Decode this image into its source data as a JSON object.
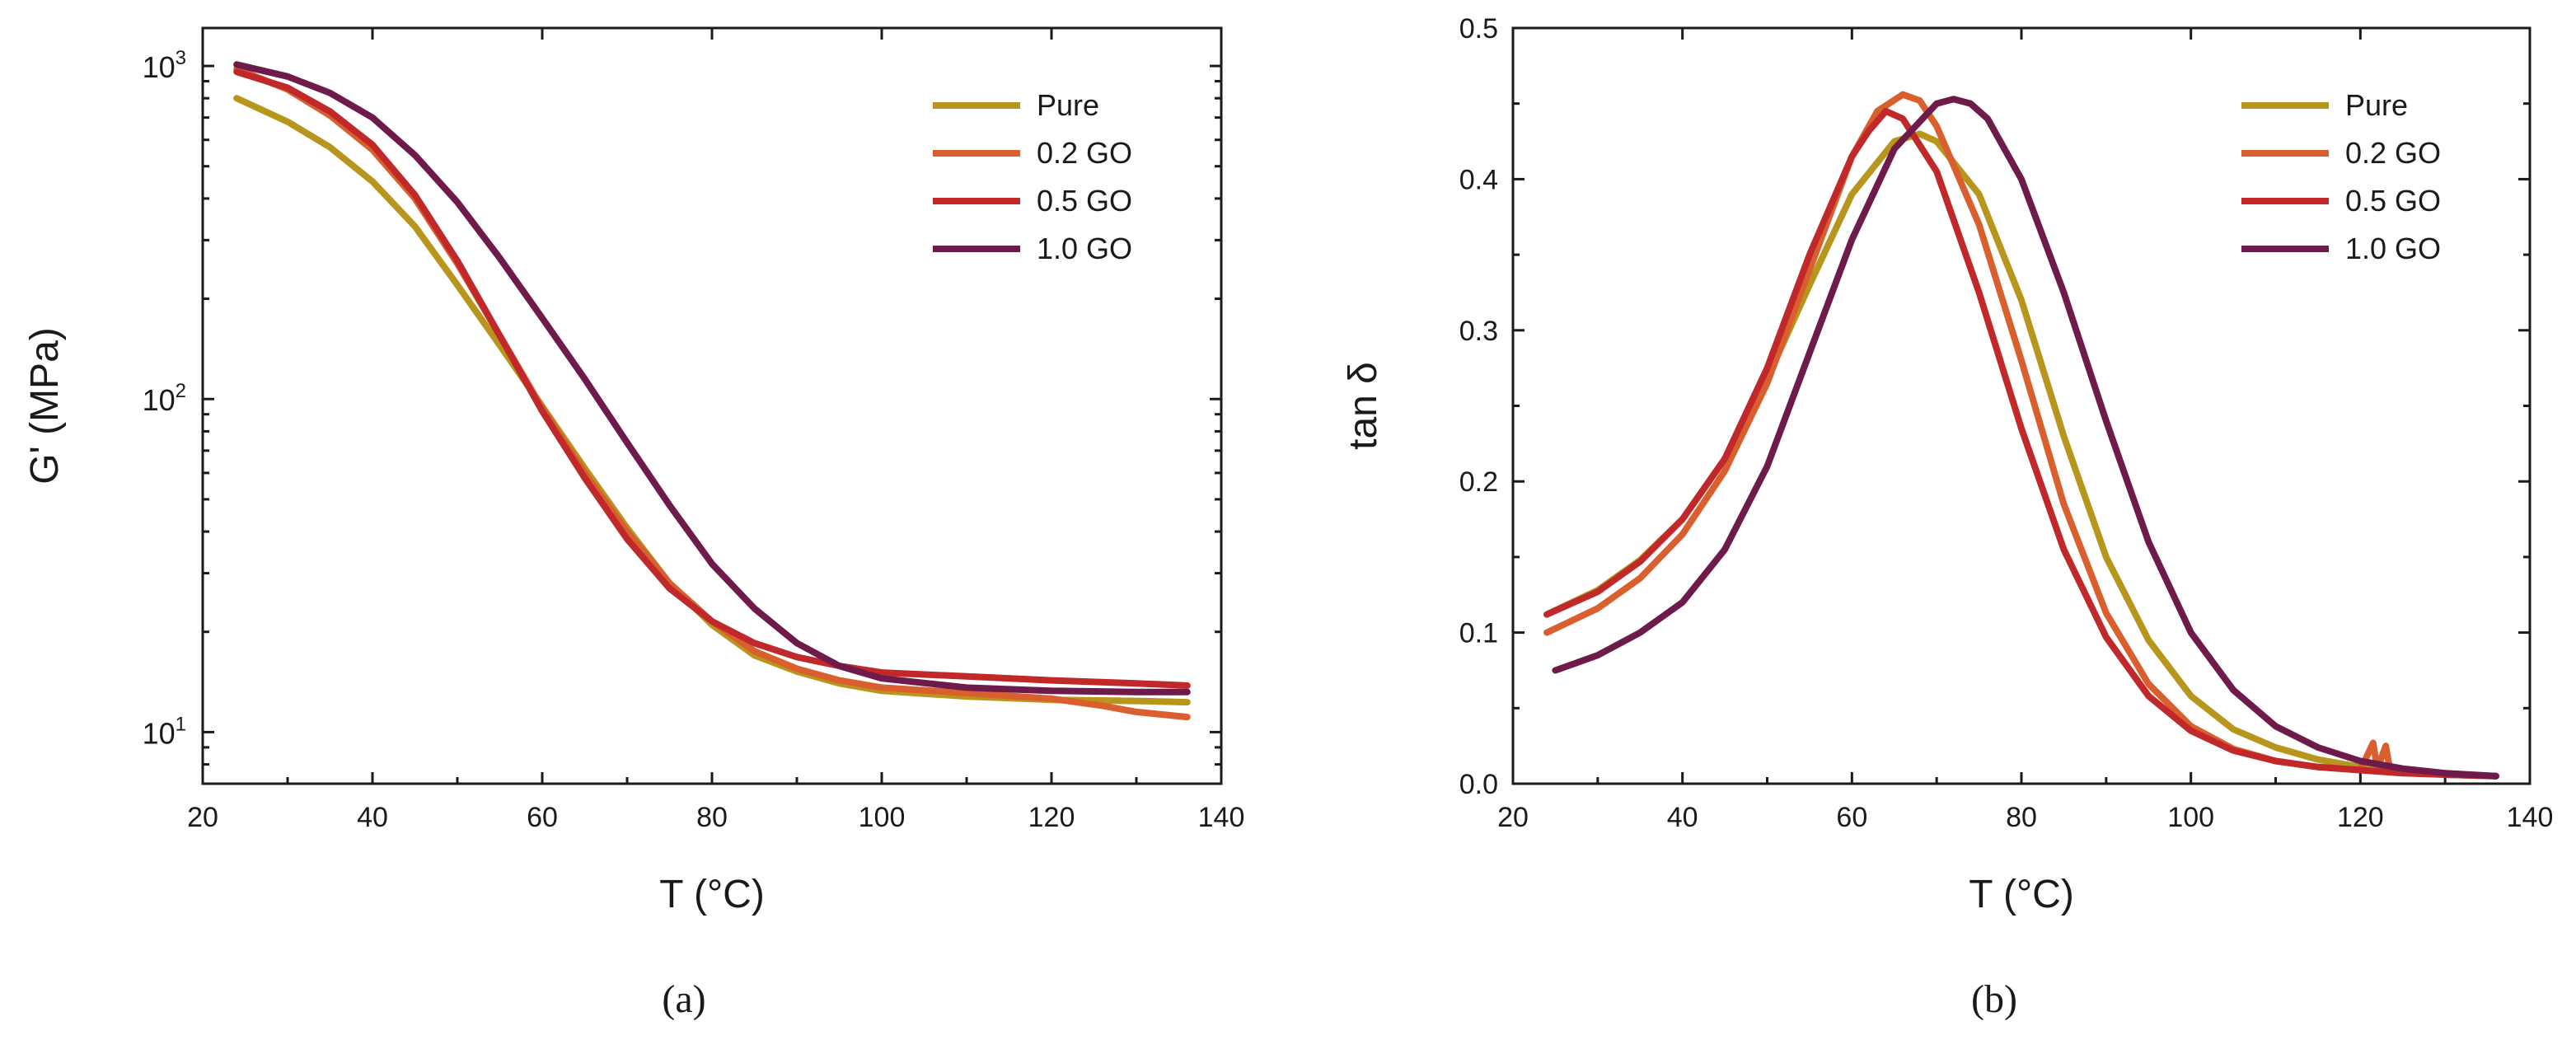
{
  "colors": {
    "Pure": "#b8961e",
    "0.2 GO": "#d9602e",
    "0.5 GO": "#c0282a",
    "1.0 GO": "#6e1a4a"
  },
  "chart_data": [
    {
      "type": "line",
      "panel": "a",
      "caption": "(a)",
      "xlabel": "T (°C)",
      "ylabel": "G' (MPa)",
      "yscale": "log",
      "xlim": [
        20,
        140
      ],
      "ylim": [
        7,
        1300
      ],
      "xticks": [
        20,
        40,
        60,
        80,
        100,
        120,
        140
      ],
      "xtick_labels": [
        "20",
        "40",
        "60",
        "80",
        "100",
        "120",
        "140"
      ],
      "yticks": [
        10,
        100,
        1000
      ],
      "ytick_labels": [
        {
          "base": "10",
          "exp": "1"
        },
        {
          "base": "10",
          "exp": "2"
        },
        {
          "base": "10",
          "exp": "3"
        }
      ],
      "legend": "top-right",
      "series": [
        {
          "name": "Pure",
          "x": [
            24,
            30,
            35,
            40,
            45,
            50,
            55,
            60,
            65,
            70,
            75,
            80,
            85,
            90,
            95,
            100,
            110,
            120,
            130,
            136
          ],
          "y": [
            800,
            680,
            570,
            450,
            330,
            220,
            145,
            95,
            62,
            41,
            28,
            21,
            17,
            15.2,
            14,
            13.3,
            12.8,
            12.5,
            12.4,
            12.3
          ]
        },
        {
          "name": "0.2 GO",
          "x": [
            24,
            30,
            35,
            40,
            45,
            50,
            55,
            60,
            65,
            70,
            75,
            80,
            85,
            90,
            95,
            100,
            110,
            120,
            126,
            130,
            136
          ],
          "y": [
            980,
            850,
            710,
            560,
            400,
            255,
            155,
            94,
            60,
            40,
            28,
            21.5,
            17.5,
            15.5,
            14.3,
            13.6,
            13.1,
            12.6,
            12,
            11.5,
            11.1
          ]
        },
        {
          "name": "0.5 GO",
          "x": [
            24,
            30,
            35,
            40,
            45,
            50,
            55,
            60,
            65,
            70,
            75,
            80,
            85,
            90,
            95,
            100,
            110,
            120,
            130,
            136
          ],
          "y": [
            960,
            860,
            730,
            580,
            410,
            260,
            155,
            92,
            58,
            38,
            27,
            21.5,
            18.5,
            16.8,
            15.8,
            15.1,
            14.7,
            14.3,
            14,
            13.8
          ]
        },
        {
          "name": "1.0 GO",
          "x": [
            24,
            30,
            35,
            40,
            45,
            50,
            55,
            60,
            65,
            70,
            75,
            80,
            85,
            90,
            95,
            100,
            110,
            120,
            130,
            136
          ],
          "y": [
            1010,
            930,
            830,
            700,
            540,
            390,
            265,
            175,
            115,
            74,
            48,
            32,
            23.5,
            18.5,
            15.8,
            14.5,
            13.6,
            13.3,
            13.2,
            13.2
          ]
        }
      ]
    },
    {
      "type": "line",
      "panel": "b",
      "caption": "(b)",
      "xlabel": "T (°C)",
      "ylabel": "tan δ",
      "yscale": "linear",
      "xlim": [
        20,
        140
      ],
      "ylim": [
        0,
        0.5
      ],
      "xticks": [
        20,
        40,
        60,
        80,
        100,
        120,
        140
      ],
      "xtick_labels": [
        "20",
        "40",
        "60",
        "80",
        "100",
        "120",
        "140"
      ],
      "yticks": [
        0,
        0.1,
        0.2,
        0.3,
        0.4,
        0.5
      ],
      "ytick_labels": [
        "0.0",
        "0.1",
        "0.2",
        "0.3",
        "0.4",
        "0.5"
      ],
      "legend": "top-right",
      "series": [
        {
          "name": "Pure",
          "x": [
            24,
            30,
            35,
            40,
            45,
            50,
            55,
            60,
            65,
            68,
            70,
            75,
            80,
            85,
            90,
            95,
            100,
            105,
            110,
            115,
            120,
            125,
            130,
            136
          ],
          "y": [
            0.112,
            0.128,
            0.148,
            0.175,
            0.215,
            0.268,
            0.33,
            0.39,
            0.425,
            0.43,
            0.425,
            0.39,
            0.32,
            0.23,
            0.15,
            0.095,
            0.058,
            0.036,
            0.024,
            0.016,
            0.011,
            0.008,
            0.006,
            0.005
          ]
        },
        {
          "name": "0.2 GO",
          "x": [
            24,
            30,
            35,
            40,
            45,
            50,
            55,
            60,
            63,
            66,
            68,
            70,
            75,
            80,
            85,
            90,
            95,
            100,
            105,
            110,
            115,
            120,
            121.5,
            122,
            123,
            123.5,
            125,
            130,
            136
          ],
          "y": [
            0.1,
            0.116,
            0.136,
            0.165,
            0.207,
            0.265,
            0.34,
            0.415,
            0.445,
            0.456,
            0.452,
            0.435,
            0.37,
            0.28,
            0.185,
            0.113,
            0.066,
            0.038,
            0.023,
            0.015,
            0.011,
            0.009,
            0.027,
            0.01,
            0.025,
            0.009,
            0.008,
            0.006,
            0.005
          ]
        },
        {
          "name": "0.5 GO",
          "x": [
            24,
            30,
            35,
            40,
            45,
            50,
            55,
            60,
            62,
            64,
            66,
            70,
            75,
            80,
            85,
            90,
            95,
            100,
            105,
            110,
            115,
            120,
            125,
            130,
            136
          ],
          "y": [
            0.112,
            0.127,
            0.147,
            0.175,
            0.215,
            0.275,
            0.35,
            0.415,
            0.432,
            0.445,
            0.44,
            0.405,
            0.325,
            0.235,
            0.155,
            0.097,
            0.058,
            0.035,
            0.022,
            0.015,
            0.011,
            0.009,
            0.007,
            0.006,
            0.005
          ]
        },
        {
          "name": "1.0 GO",
          "x": [
            25,
            30,
            35,
            40,
            45,
            50,
            55,
            60,
            65,
            70,
            72,
            74,
            76,
            80,
            85,
            90,
            95,
            100,
            105,
            110,
            115,
            120,
            125,
            130,
            136
          ],
          "y": [
            0.075,
            0.085,
            0.1,
            0.12,
            0.155,
            0.21,
            0.285,
            0.36,
            0.42,
            0.45,
            0.453,
            0.45,
            0.44,
            0.4,
            0.325,
            0.24,
            0.16,
            0.1,
            0.062,
            0.038,
            0.024,
            0.015,
            0.01,
            0.007,
            0.005
          ]
        }
      ]
    }
  ]
}
